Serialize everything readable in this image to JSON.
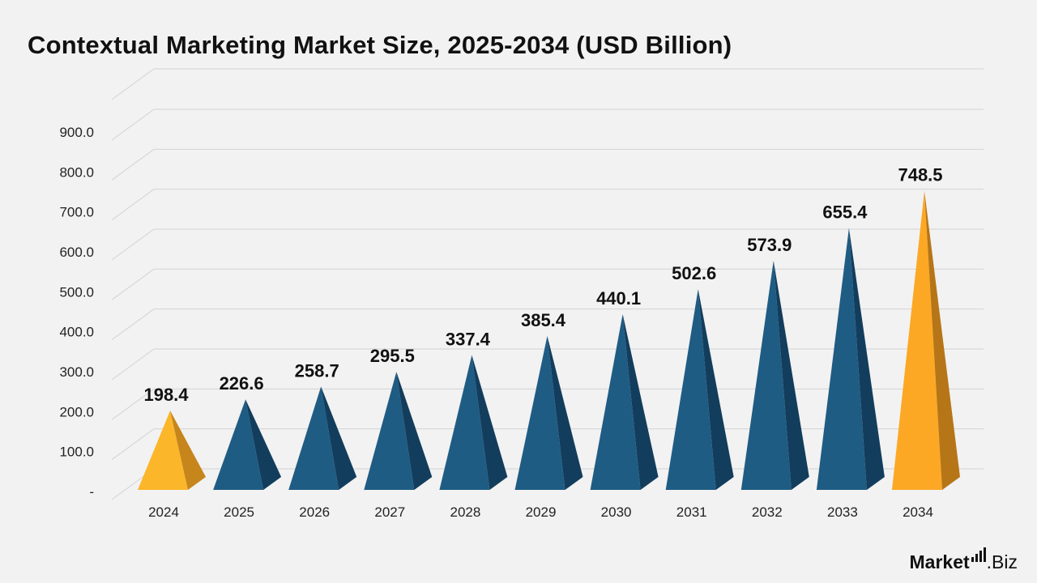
{
  "chart_data": {
    "type": "bar",
    "title": "Contextual Marketing Market Size, 2025-2034 (USD Billion)",
    "xlabel": "",
    "ylabel": "",
    "categories": [
      "2024",
      "2025",
      "2026",
      "2027",
      "2028",
      "2029",
      "2030",
      "2031",
      "2032",
      "2033",
      "2034"
    ],
    "values": [
      198.4,
      226.6,
      258.7,
      295.5,
      337.4,
      385.4,
      440.1,
      502.6,
      573.9,
      655.4,
      748.5
    ],
    "value_labels": [
      "198.4",
      "226.6",
      "258.7",
      "295.5",
      "337.4",
      "385.4",
      "440.1",
      "502.6",
      "573.9",
      "655.4",
      "748.5"
    ],
    "y_ticks": [
      "-",
      "100.0",
      "200.0",
      "300.0",
      "400.0",
      "500.0",
      "600.0",
      "700.0",
      "800.0",
      "900.0"
    ],
    "ylim": [
      0,
      900
    ],
    "grid": true,
    "legend": "none",
    "bar_shape": "pyramid",
    "highlighted_categories": [
      "2024",
      "2034"
    ],
    "colors": {
      "default_front": "#1f5c84",
      "default_side": "#133d5c",
      "first_front": "#fbb62a",
      "first_side": "#c6861c",
      "last_front": "#fca824",
      "last_side": "#b67517",
      "grid": "#d3d3d3",
      "background": "#f2f2f2"
    }
  },
  "branding": {
    "logo_main": "Market",
    "logo_suffix": ".Biz"
  }
}
